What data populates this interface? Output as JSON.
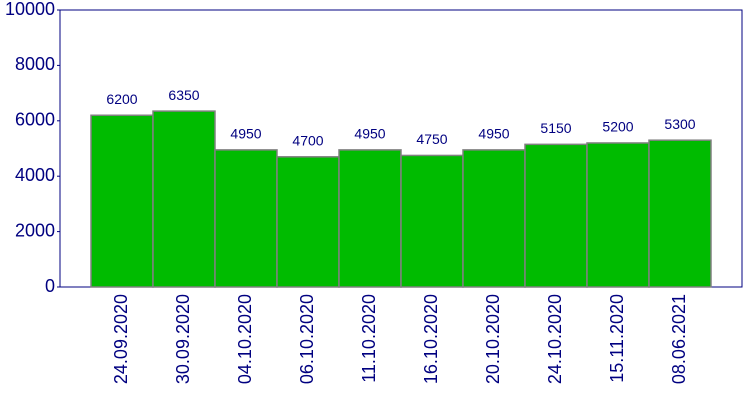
{
  "chart_data": {
    "type": "bar",
    "categories": [
      "24.09.2020",
      "30.09.2020",
      "04.10.2020",
      "06.10.2020",
      "11.10.2020",
      "16.10.2020",
      "20.10.2020",
      "24.10.2020",
      "15.11.2020",
      "08.06.2021"
    ],
    "values": [
      6200,
      6350,
      4950,
      4700,
      4950,
      4750,
      4950,
      5150,
      5200,
      5300
    ],
    "color": "#00bb00",
    "ylim": [
      0,
      10000
    ],
    "yticks": [
      0,
      2000,
      4000,
      6000,
      8000,
      10000
    ],
    "grid": false
  }
}
